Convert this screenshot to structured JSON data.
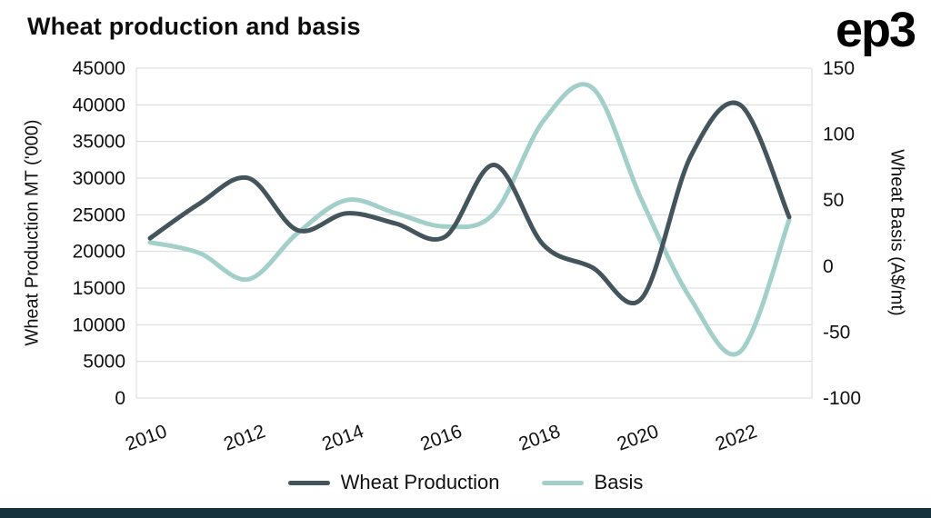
{
  "page": {
    "title": "Wheat production and basis",
    "logo": "ep3"
  },
  "chart_data": {
    "type": "line",
    "title": "Wheat production and basis",
    "x": [
      2010,
      2011,
      2012,
      2013,
      2014,
      2015,
      2016,
      2017,
      2018,
      2019,
      2020,
      2021,
      2022,
      2023
    ],
    "x_ticks": [
      "2010",
      "2012",
      "2014",
      "2016",
      "2018",
      "2020",
      "2022"
    ],
    "series": [
      {
        "name": "Wheat Production",
        "axis": "left",
        "color": "#44545c",
        "values": [
          21800,
          26500,
          30000,
          22900,
          25200,
          23800,
          22000,
          31800,
          20900,
          17800,
          13600,
          33000,
          40000,
          24700
        ]
      },
      {
        "name": "Basis",
        "axis": "right",
        "color": "#a2cfc9",
        "values": [
          18,
          10,
          -10,
          25,
          50,
          40,
          30,
          40,
          110,
          135,
          50,
          -25,
          -65,
          35
        ]
      }
    ],
    "left_axis": {
      "label": "Wheat Production MT ('000)",
      "min": 0,
      "max": 45000,
      "step": 5000,
      "ticks": [
        0,
        5000,
        10000,
        15000,
        20000,
        25000,
        30000,
        35000,
        40000,
        45000
      ]
    },
    "right_axis": {
      "label": "Wheat Basis (A$/mt)",
      "min": -100,
      "max": 150,
      "step": 50,
      "ticks": [
        -100,
        -50,
        0,
        50,
        100,
        150
      ]
    },
    "grid": true,
    "legend_position": "bottom"
  },
  "colors": {
    "grid": "#d9d9d9",
    "axis_text": "#111111",
    "background": "#ffffff",
    "bottom_bar": "#15323d",
    "production_line": "#44545c",
    "basis_line": "#a2cfc9"
  }
}
